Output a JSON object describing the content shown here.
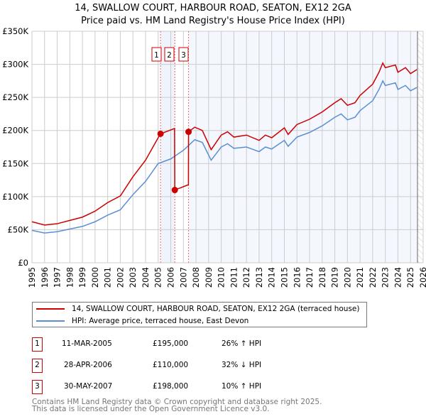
{
  "chart_data": {
    "type": "line",
    "title": "14, SWALLOW COURT, HARBOUR ROAD, SEATON, EX12 2GA",
    "subtitle": "Price paid vs. HM Land Registry's House Price Index (HPI)",
    "xlim": [
      1995,
      2026
    ],
    "ylim": [
      0,
      350000
    ],
    "x_ticks": [
      "1995",
      "1996",
      "1997",
      "1998",
      "1999",
      "2000",
      "2001",
      "2002",
      "2003",
      "2004",
      "2005",
      "2006",
      "2007",
      "2008",
      "2009",
      "2010",
      "2011",
      "2012",
      "2013",
      "2014",
      "2015",
      "2016",
      "2017",
      "2018",
      "2019",
      "2020",
      "2021",
      "2022",
      "2023",
      "2024",
      "2025",
      "2026"
    ],
    "y_ticks": [
      {
        "v": 0,
        "label": "£0"
      },
      {
        "v": 50000,
        "label": "£50K"
      },
      {
        "v": 100000,
        "label": "£100K"
      },
      {
        "v": 150000,
        "label": "£150K"
      },
      {
        "v": 200000,
        "label": "£200K"
      },
      {
        "v": 250000,
        "label": "£250K"
      },
      {
        "v": 300000,
        "label": "£300K"
      },
      {
        "v": 350000,
        "label": "£350K"
      }
    ],
    "grid": true,
    "series": [
      {
        "name": "14, SWALLOW COURT, HARBOUR ROAD, SEATON, EX12 2GA (terraced house)",
        "color": "#cc0000",
        "x": [
          1995,
          1996,
          1997,
          1998,
          1999,
          2000,
          2001,
          2002,
          2003,
          2004,
          2005,
          2005.19,
          2006.3,
          2006.32,
          2007.4,
          2007.41,
          2007.9,
          2008.5,
          2009.2,
          2009.6,
          2010,
          2010.5,
          2011,
          2012,
          2013,
          2013.5,
          2014,
          2015,
          2015.3,
          2016,
          2017,
          2018,
          2019,
          2019.5,
          2020,
          2020.6,
          2021,
          2022,
          2022.5,
          2022.8,
          2023,
          2023.8,
          2024,
          2024.6,
          2025,
          2025.5
        ],
        "y": [
          62000,
          57000,
          59000,
          64000,
          69000,
          78000,
          91000,
          101000,
          130000,
          155000,
          189000,
          195000,
          203000,
          110000,
          118000,
          198000,
          205000,
          200000,
          171000,
          182000,
          193000,
          198000,
          190000,
          193000,
          185000,
          193000,
          189000,
          204000,
          194000,
          209000,
          217000,
          228000,
          242000,
          248000,
          238000,
          242000,
          253000,
          270000,
          288000,
          302000,
          295000,
          299000,
          288000,
          295000,
          286000,
          292000
        ]
      },
      {
        "name": "HPI: Average price, terraced house, East Devon",
        "color": "#5b8fd4",
        "x": [
          1995,
          1996,
          1997,
          1998,
          1999,
          2000,
          2001,
          2002,
          2003,
          2004,
          2005,
          2006,
          2007,
          2007.9,
          2008.5,
          2009.2,
          2009.6,
          2010,
          2010.5,
          2011,
          2012,
          2013,
          2013.5,
          2014,
          2015,
          2015.3,
          2016,
          2017,
          2018,
          2019,
          2019.5,
          2020,
          2020.6,
          2021,
          2022,
          2022.5,
          2022.8,
          2023,
          2023.8,
          2024,
          2024.6,
          2025,
          2025.5
        ],
        "y": [
          49000,
          45000,
          47000,
          51000,
          55000,
          62000,
          72000,
          80000,
          103000,
          123000,
          150000,
          157000,
          170000,
          186000,
          182000,
          155000,
          165000,
          175000,
          180000,
          173000,
          175000,
          168000,
          175000,
          172000,
          185000,
          176000,
          190000,
          197000,
          207000,
          220000,
          225000,
          216000,
          220000,
          230000,
          245000,
          262000,
          275000,
          268000,
          272000,
          262000,
          268000,
          260000,
          265000
        ]
      }
    ],
    "sales": [
      {
        "n": "1",
        "x": 2005.19,
        "y": 195000,
        "date": "11-MAR-2005",
        "price": "£195,000",
        "hpi": "26% ↑ HPI"
      },
      {
        "n": "2",
        "x": 2006.32,
        "y": 110000,
        "date": "28-APR-2006",
        "price": "£110,000",
        "hpi": "32% ↓ HPI"
      },
      {
        "n": "3",
        "x": 2007.41,
        "y": 198000,
        "date": "30-MAY-2007",
        "price": "£198,000",
        "hpi": "10% ↑ HPI"
      }
    ],
    "forecast_start": 2025.55,
    "legend_position": "bottom"
  },
  "footer": {
    "line1": "Contains HM Land Registry data © Crown copyright and database right 2025.",
    "line2": "This data is licensed under the Open Government Licence v3.0."
  }
}
